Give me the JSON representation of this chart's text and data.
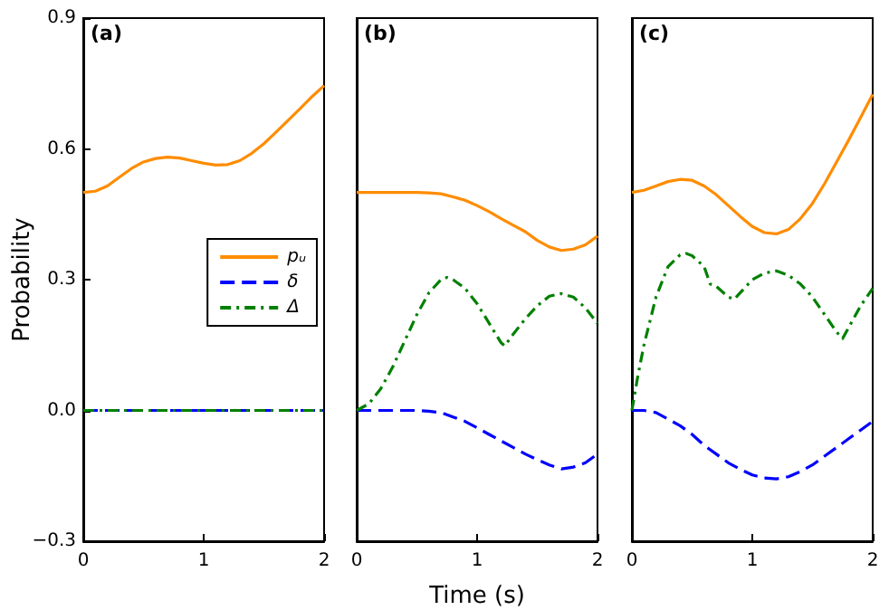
{
  "chart_data": [
    {
      "type": "line",
      "title": "(a)",
      "ylabel": "Probability",
      "xlim": [
        0,
        2
      ],
      "xticks": [
        0,
        1,
        2
      ],
      "ylim": [
        -0.3,
        0.9
      ],
      "yticks": [
        {
          "value": -0.3,
          "label": "−0.3"
        },
        {
          "value": 0,
          "label": "0.0"
        },
        0.3,
        0.6,
        0.9
      ],
      "grid": false,
      "legend": "right",
      "marker": "none",
      "series": [
        {
          "name": "pᵤ",
          "color": "#ff8c00",
          "line_style": "solid",
          "x": [
            0,
            0.1,
            0.2,
            0.3,
            0.4,
            0.5,
            0.6,
            0.7,
            0.8,
            0.9,
            1.0,
            1.1,
            1.2,
            1.3,
            1.4,
            1.5,
            1.6,
            1.7,
            1.8,
            1.9,
            2.0
          ],
          "values": [
            0.5,
            0.503,
            0.515,
            0.535,
            0.555,
            0.57,
            0.578,
            0.581,
            0.579,
            0.573,
            0.567,
            0.563,
            0.564,
            0.573,
            0.59,
            0.612,
            0.638,
            0.665,
            0.692,
            0.72,
            0.745
          ]
        },
        {
          "name": "δ",
          "color": "#0000ff",
          "line_style": "dashed",
          "x": [
            0,
            2
          ],
          "values": [
            0,
            0
          ]
        },
        {
          "name": "Δ",
          "color": "#008000",
          "line_style": "dotted",
          "x": [
            0,
            2
          ],
          "values": [
            0,
            0
          ]
        }
      ]
    },
    {
      "type": "line",
      "title": "(b)",
      "xlabel": "Time (s)",
      "xlim": [
        0,
        2
      ],
      "xticks": [
        0,
        1,
        2
      ],
      "ylim": [
        -0.3,
        0.9
      ],
      "tick_labels": "x",
      "grid": false,
      "marker": "none",
      "series": [
        {
          "color": "#ff8c00",
          "line_style": "solid",
          "x": [
            0,
            0.2,
            0.4,
            0.5,
            0.6,
            0.7,
            0.8,
            0.9,
            1.0,
            1.1,
            1.2,
            1.3,
            1.4,
            1.5,
            1.6,
            1.7,
            1.8,
            1.9,
            2.0
          ],
          "values": [
            0.5,
            0.5,
            0.5,
            0.5,
            0.499,
            0.497,
            0.49,
            0.482,
            0.47,
            0.456,
            0.44,
            0.425,
            0.41,
            0.39,
            0.375,
            0.367,
            0.37,
            0.38,
            0.4
          ]
        },
        {
          "color": "#0000ff",
          "line_style": "dashed",
          "x": [
            0,
            0.2,
            0.4,
            0.5,
            0.6,
            0.7,
            0.8,
            0.9,
            1.0,
            1.1,
            1.2,
            1.3,
            1.4,
            1.5,
            1.6,
            1.7,
            1.8,
            1.9,
            2.0
          ],
          "values": [
            0,
            0,
            0,
            0,
            -0.002,
            -0.005,
            -0.015,
            -0.025,
            -0.04,
            -0.055,
            -0.07,
            -0.085,
            -0.1,
            -0.113,
            -0.125,
            -0.134,
            -0.13,
            -0.12,
            -0.1
          ]
        },
        {
          "color": "#008000",
          "line_style": "dotted",
          "x": [
            0,
            0.1,
            0.2,
            0.3,
            0.4,
            0.5,
            0.6,
            0.7,
            0.75,
            0.8,
            0.9,
            1.0,
            1.1,
            1.2,
            1.23,
            1.3,
            1.4,
            1.5,
            1.6,
            1.7,
            1.8,
            1.9,
            2.0
          ],
          "values": [
            0,
            0.015,
            0.05,
            0.1,
            0.16,
            0.22,
            0.27,
            0.3,
            0.305,
            0.3,
            0.28,
            0.245,
            0.2,
            0.155,
            0.148,
            0.175,
            0.21,
            0.24,
            0.262,
            0.268,
            0.26,
            0.235,
            0.2
          ]
        }
      ]
    },
    {
      "type": "line",
      "title": "(c)",
      "xlim": [
        0,
        2
      ],
      "xticks": [
        0,
        1,
        2
      ],
      "ylim": [
        -0.3,
        0.9
      ],
      "tick_labels": "x",
      "grid": false,
      "marker": "none",
      "series": [
        {
          "color": "#ff8c00",
          "line_style": "solid",
          "x": [
            0,
            0.1,
            0.2,
            0.3,
            0.4,
            0.5,
            0.6,
            0.7,
            0.8,
            0.9,
            1.0,
            1.1,
            1.2,
            1.3,
            1.4,
            1.5,
            1.6,
            1.7,
            1.8,
            1.9,
            2.0
          ],
          "values": [
            0.5,
            0.505,
            0.515,
            0.525,
            0.53,
            0.528,
            0.515,
            0.495,
            0.47,
            0.445,
            0.422,
            0.408,
            0.405,
            0.415,
            0.44,
            0.475,
            0.52,
            0.57,
            0.62,
            0.672,
            0.725
          ]
        },
        {
          "color": "#0000ff",
          "line_style": "dashed",
          "x": [
            0,
            0.1,
            0.2,
            0.3,
            0.4,
            0.5,
            0.6,
            0.7,
            0.8,
            0.9,
            1.0,
            1.1,
            1.2,
            1.3,
            1.4,
            1.5,
            1.6,
            1.7,
            1.8,
            1.9,
            2.0
          ],
          "values": [
            0,
            0,
            -0.005,
            -0.02,
            -0.035,
            -0.055,
            -0.08,
            -0.1,
            -0.12,
            -0.135,
            -0.148,
            -0.155,
            -0.157,
            -0.152,
            -0.14,
            -0.125,
            -0.105,
            -0.085,
            -0.065,
            -0.045,
            -0.025
          ]
        },
        {
          "color": "#008000",
          "line_style": "dotted",
          "x": [
            0,
            0.05,
            0.1,
            0.2,
            0.3,
            0.4,
            0.45,
            0.5,
            0.6,
            0.65,
            0.7,
            0.8,
            0.85,
            0.9,
            1.0,
            1.1,
            1.2,
            1.3,
            1.4,
            1.5,
            1.6,
            1.7,
            1.75,
            1.8,
            1.9,
            2.0
          ],
          "values": [
            0,
            0.08,
            0.15,
            0.26,
            0.33,
            0.357,
            0.36,
            0.355,
            0.33,
            0.29,
            0.285,
            0.26,
            0.255,
            0.27,
            0.3,
            0.315,
            0.32,
            0.31,
            0.29,
            0.26,
            0.22,
            0.18,
            0.165,
            0.19,
            0.24,
            0.28
          ]
        }
      ]
    }
  ]
}
